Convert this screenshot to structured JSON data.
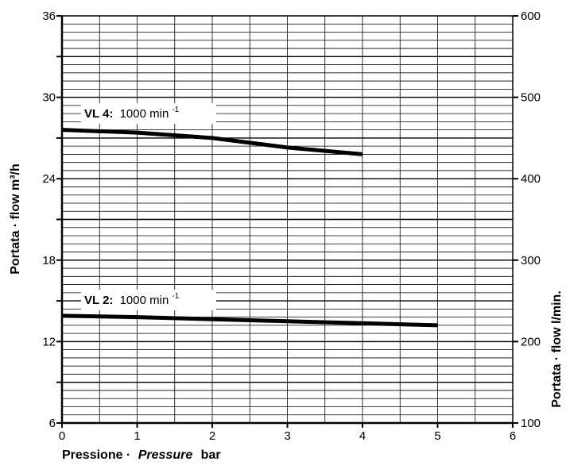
{
  "chart_data": {
    "type": "line",
    "xlabel": {
      "part1": "Pressione ·",
      "part2": "Pressure",
      "part3": "bar"
    },
    "ylabel_left": "Portata · flow  m³/h",
    "ylabel_right": "Portata · flow  l/min.",
    "xlim": [
      0,
      6
    ],
    "ylim": [
      6,
      36
    ],
    "ylim_right": [
      100,
      600
    ],
    "x_ticks": [
      "0",
      "1",
      "2",
      "3",
      "4",
      "5",
      "6"
    ],
    "y_ticks_left": [
      "6",
      "12",
      "18",
      "24",
      "30",
      "36"
    ],
    "y_ticks_right": [
      "100",
      "200",
      "300",
      "400",
      "500",
      "600"
    ],
    "grid": true,
    "series": [
      {
        "name_bold": "VL 4:",
        "name_rest": "1000 min",
        "name_sup": "-1",
        "x": [
          0,
          1,
          2,
          3,
          4
        ],
        "y": [
          27.6,
          27.4,
          27.0,
          26.3,
          25.8
        ]
      },
      {
        "name_bold": "VL 2:",
        "name_rest": "1000 min",
        "name_sup": "-1",
        "x": [
          0,
          1,
          2,
          3,
          4,
          5
        ],
        "y": [
          13.9,
          13.8,
          13.65,
          13.5,
          13.35,
          13.2
        ]
      }
    ]
  }
}
